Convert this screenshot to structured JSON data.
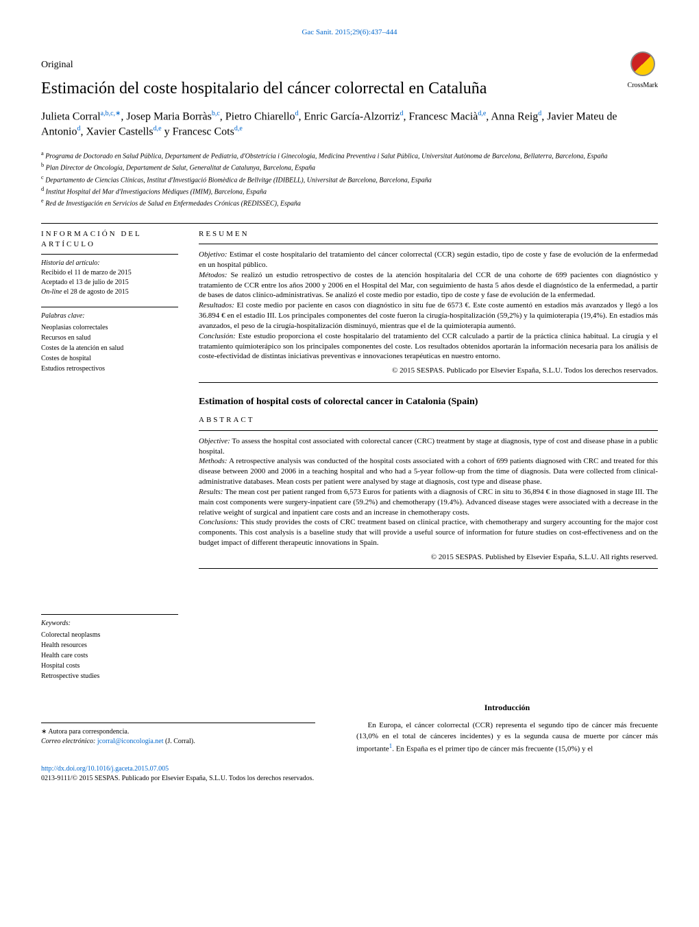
{
  "journal_ref": "Gac Sanit. 2015;29(6):437–444",
  "article_type": "Original",
  "title_es": "Estimación del coste hospitalario del cáncer colorrectal en Cataluña",
  "crossmark_label": "CrossMark",
  "authors_html": "Julieta Corral|a,b,c,∗|, Josep Maria Borràs|b,c|, Pietro Chiarello|d|, Enric García-Alzorriz|d|, Francesc Macià|d,e|, Anna Reig|d|, Javier Mateu de Antonio|d|, Xavier Castells|d,e| y Francesc Cots|d,e|",
  "affiliations": [
    {
      "sup": "a",
      "text": "Programa de Doctorado en Salud Pública, Departament de Pediatria, d'Obstetrícia i Ginecologia, Medicina Preventiva i Salut Pública, Universitat Autònoma de Barcelona, Bellaterra, Barcelona, España"
    },
    {
      "sup": "b",
      "text": "Plan Director de Oncología, Departament de Salut, Generalitat de Catalunya, Barcelona, España"
    },
    {
      "sup": "c",
      "text": "Departamento de Ciencias Clínicas, Institut d'Investigació Biomèdica de Bellvitge (IDIBELL), Universitat de Barcelona, Barcelona, España"
    },
    {
      "sup": "d",
      "text": "Institut Hospital del Mar d'Investigacions Mèdiques (IMIM), Barcelona, España"
    },
    {
      "sup": "e",
      "text": "Red de Investigación en Servicios de Salud en Enfermedades Crónicas (REDISSEC), España"
    }
  ],
  "info_header": "información del artículo",
  "history_label": "Historia del artículo:",
  "history_lines": [
    "Recibido el 11 de marzo de 2015",
    "Aceptado el 13 de julio de 2015",
    "On-line el 28 de agosto de 2015"
  ],
  "keywords_es_label": "Palabras clave:",
  "keywords_es": [
    "Neoplasias colorrectales",
    "Recursos en salud",
    "Costes de la atención en salud",
    "Costes de hospital",
    "Estudios retrospectivos"
  ],
  "keywords_en_label": "Keywords:",
  "keywords_en": [
    "Colorectal neoplasms",
    "Health resources",
    "Health care costs",
    "Hospital costs",
    "Retrospective studies"
  ],
  "resumen_header": "resumen",
  "resumen": {
    "objetivo_label": "Objetivo:",
    "objetivo": "Estimar el coste hospitalario del tratamiento del cáncer colorrectal (CCR) según estadio, tipo de coste y fase de evolución de la enfermedad en un hospital público.",
    "metodos_label": "Métodos:",
    "metodos": "Se realizó un estudio retrospectivo de costes de la atención hospitalaria del CCR de una cohorte de 699 pacientes con diagnóstico y tratamiento de CCR entre los años 2000 y 2006 en el Hospital del Mar, con seguimiento de hasta 5 años desde el diagnóstico de la enfermedad, a partir de bases de datos clínico-administrativas. Se analizó el coste medio por estadio, tipo de coste y fase de evolución de la enfermedad.",
    "resultados_label": "Resultados:",
    "resultados": "El coste medio por paciente en casos con diagnóstico in situ fue de 6573 €. Este coste aumentó en estadios más avanzados y llegó a los 36.894 € en el estadio III. Los principales componentes del coste fueron la cirugía-hospitalización (59,2%) y la quimioterapia (19,4%). En estadios más avanzados, el peso de la cirugía-hospitalización disminuyó, mientras que el de la quimioterapia aumentó.",
    "conclusion_label": "Conclusión:",
    "conclusion": "Este estudio proporciona el coste hospitalario del tratamiento del CCR calculado a partir de la práctica clínica habitual. La cirugía y el tratamiento quimioterápico son los principales componentes del coste. Los resultados obtenidos aportarán la información necesaria para los análisis de coste-efectividad de distintas iniciativas preventivas e innovaciones terapéuticas en nuestro entorno."
  },
  "copyright_es": "© 2015 SESPAS. Publicado por Elsevier España, S.L.U. Todos los derechos reservados.",
  "title_en": "Estimation of hospital costs of colorectal cancer in Catalonia (Spain)",
  "abstract_header": "abstract",
  "abstract": {
    "objective_label": "Objective:",
    "objective": "To assess the hospital cost associated with colorectal cancer (CRC) treatment by stage at diagnosis, type of cost and disease phase in a public hospital.",
    "methods_label": "Methods:",
    "methods": "A retrospective analysis was conducted of the hospital costs associated with a cohort of 699 patients diagnosed with CRC and treated for this disease between 2000 and 2006 in a teaching hospital and who had a 5-year follow-up from the time of diagnosis. Data were collected from clinical-administrative databases. Mean costs per patient were analysed by stage at diagnosis, cost type and disease phase.",
    "results_label": "Results:",
    "results": "The mean cost per patient ranged from 6,573 Euros for patients with a diagnosis of CRC in situ to 36,894 € in those diagnosed in stage III. The main cost components were surgery-inpatient care (59.2%) and chemotherapy (19.4%). Advanced disease stages were associated with a decrease in the relative weight of surgical and inpatient care costs and an increase in chemotherapy costs.",
    "conclusions_label": "Conclusions:",
    "conclusions": "This study provides the costs of CRC treatment based on clinical practice, with chemotherapy and surgery accounting for the major cost components. This cost analysis is a baseline study that will provide a useful source of information for future studies on cost-effectiveness and on the budget impact of different therapeutic innovations in Spain."
  },
  "copyright_en": "© 2015 SESPAS. Published by Elsevier España, S.L.U. All rights reserved.",
  "intro_heading": "Introducción",
  "intro_text": "En Europa, el cáncer colorrectal (CCR) representa el segundo tipo de cáncer más frecuente (13,0% en el total de cánceres incidentes) y es la segunda causa de muerte por cáncer más importante|1|. En España es el primer tipo de cáncer más frecuente (15,0%) y el",
  "corresponding_note": "∗ Autora para correspondencia.",
  "email_label": "Correo electrónico:",
  "email": "jcorral@iconcologia.net",
  "email_name": "(J. Corral).",
  "doi": "http://dx.doi.org/10.1016/j.gaceta.2015.07.005",
  "footer_copyright": "0213-9111/© 2015 SESPAS. Publicado por Elsevier España, S.L.U. Todos los derechos reservados."
}
